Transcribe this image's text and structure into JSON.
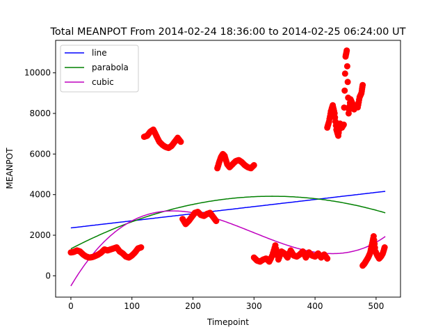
{
  "chart_data": {
    "type": "scatter",
    "title": "Total MEANPOT From 2014-02-24 18:36:00 to 2014-02-25 06:24:00 UT",
    "xlabel": "Timepoint",
    "ylabel": "MEANPOT",
    "xlim": [
      -25,
      540
    ],
    "ylim": [
      -1050,
      11600
    ],
    "xticks": [
      0,
      100,
      200,
      300,
      400,
      500
    ],
    "yticks": [
      0,
      2000,
      4000,
      6000,
      8000,
      10000
    ],
    "grid": false,
    "legend_position": "top-left",
    "scatter": {
      "color": "#ff0000",
      "clusters": [
        {
          "x": [
            0,
            5,
            10,
            15,
            20,
            25,
            30,
            35,
            40,
            45,
            50,
            55,
            60,
            65,
            70,
            75,
            80,
            85,
            90,
            95,
            100,
            105,
            110,
            115
          ],
          "y": [
            1150,
            1180,
            1250,
            1200,
            1050,
            950,
            900,
            920,
            980,
            1050,
            1150,
            1300,
            1250,
            1300,
            1350,
            1400,
            1200,
            1100,
            950,
            900,
            1000,
            1150,
            1350,
            1400
          ]
        },
        {
          "x": [
            120,
            125,
            130,
            135,
            140,
            145,
            150,
            155,
            160,
            165,
            170,
            175,
            180
          ],
          "y": [
            6850,
            6900,
            7100,
            7200,
            6900,
            6600,
            6450,
            6350,
            6300,
            6400,
            6600,
            6800,
            6600
          ]
        },
        {
          "x": [
            183,
            188,
            193,
            198,
            203,
            208,
            213,
            218,
            223,
            228,
            233,
            238
          ],
          "y": [
            2800,
            2550,
            2700,
            2900,
            3100,
            3150,
            3000,
            2950,
            3050,
            3100,
            2900,
            2700
          ]
        },
        {
          "x": [
            240,
            243,
            246,
            249,
            252,
            256,
            260,
            265,
            270,
            275,
            280,
            285,
            290,
            295,
            300
          ],
          "y": [
            5300,
            5600,
            5850,
            6000,
            5900,
            5500,
            5350,
            5500,
            5650,
            5700,
            5600,
            5450,
            5350,
            5300,
            5450
          ]
        },
        {
          "x": [
            300,
            305,
            310,
            315,
            320,
            325,
            330,
            335,
            340,
            345,
            350,
            355,
            360,
            365,
            370,
            375,
            380,
            385,
            390,
            395,
            400,
            405,
            410,
            415,
            420
          ],
          "y": [
            900,
            750,
            700,
            800,
            850,
            700,
            1000,
            1500,
            800,
            1200,
            1100,
            900,
            1250,
            1000,
            950,
            1050,
            1200,
            900,
            1150,
            1000,
            950,
            1100,
            900,
            1050,
            850
          ]
        },
        {
          "x": [
            420,
            423,
            426,
            429,
            432,
            435,
            438,
            441,
            444,
            447,
            450,
            452,
            455,
            458,
            461,
            464,
            467,
            470,
            473,
            476,
            478
          ],
          "y": [
            7300,
            7600,
            8100,
            8400,
            8000,
            7200,
            6900,
            7500,
            7300,
            7450,
            10800,
            11100,
            8000,
            8700,
            8500,
            8200,
            8400,
            8300,
            8800,
            9000,
            9400
          ]
        },
        {
          "x": [
            478,
            481,
            484,
            487,
            490,
            493,
            496,
            499,
            502,
            505,
            508,
            511,
            514
          ],
          "y": [
            500,
            600,
            750,
            900,
            1100,
            1500,
            1950,
            1200,
            1000,
            850,
            950,
            1100,
            1400
          ]
        }
      ]
    },
    "series": [
      {
        "name": "line",
        "color": "#0000ff",
        "coefficients": [
          2360,
          3.5
        ]
      },
      {
        "name": "parabola",
        "color": "#008000",
        "coefficients": [
          1330,
          15.7,
          -0.0238
        ]
      },
      {
        "name": "cubic",
        "color": "#bf00bf",
        "coefficients": [
          -500,
          50.8,
          -0.211,
          0.000236
        ]
      }
    ],
    "fit_x_range": [
      0,
      515
    ]
  }
}
